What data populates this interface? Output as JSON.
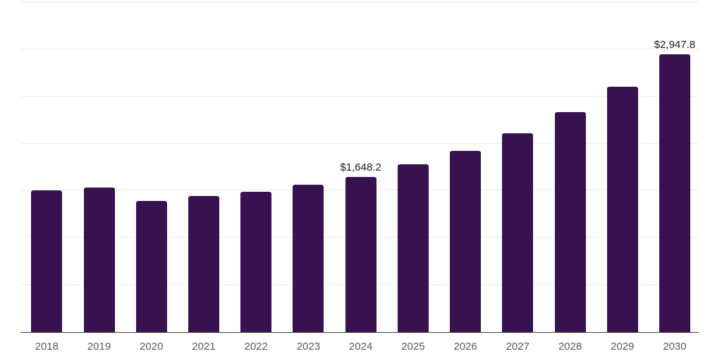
{
  "chart_data": {
    "type": "bar",
    "title": "",
    "xlabel": "",
    "ylabel": "",
    "categories": [
      "2018",
      "2019",
      "2020",
      "2021",
      "2022",
      "2023",
      "2024",
      "2025",
      "2026",
      "2027",
      "2028",
      "2029",
      "2030"
    ],
    "values": [
      1500,
      1530,
      1390,
      1443,
      1485,
      1560,
      1648.2,
      1777,
      1921,
      2107,
      2332,
      2606,
      2947.8
    ],
    "data_labels": {
      "2024": "$1,648.2",
      "2030": "$2,947.8"
    },
    "ylim": [
      0,
      3500
    ],
    "grid_step": 500,
    "grid": true,
    "legend": false,
    "y_tick_labels_visible": false,
    "colors": {
      "bar": "#38124E",
      "gridline": "#EDEDED",
      "axis_line": "#3F3F3F",
      "x_tick_label": "#58595B",
      "data_label": "#1A1A1A",
      "background": "#FFFFFF"
    }
  }
}
